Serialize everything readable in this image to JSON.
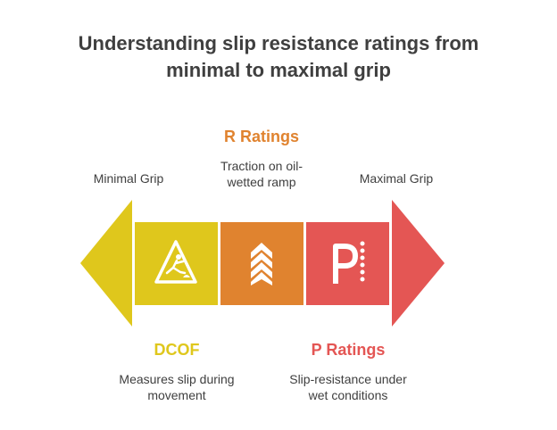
{
  "title": {
    "line1": "Understanding slip resistance ratings from",
    "line2": "minimal to maximal grip"
  },
  "left_end": {
    "label": "Minimal Grip"
  },
  "right_end": {
    "label": "Maximal Grip"
  },
  "segments": [
    {
      "heading": "DCOF",
      "desc_line1": "Measures slip during",
      "desc_line2": "movement",
      "color": "#dfc71c",
      "icon": "slip-warning-icon"
    },
    {
      "heading": "R Ratings",
      "desc_line1": "Traction on oil-",
      "desc_line2": "wetted ramp",
      "color": "#e0832f",
      "icon": "chevrons-up-icon"
    },
    {
      "heading": "P Ratings",
      "desc_line1": "Slip-resistance under",
      "desc_line2": "wet conditions",
      "color": "#e45654",
      "icon": "pendulum-p-icon"
    }
  ]
}
